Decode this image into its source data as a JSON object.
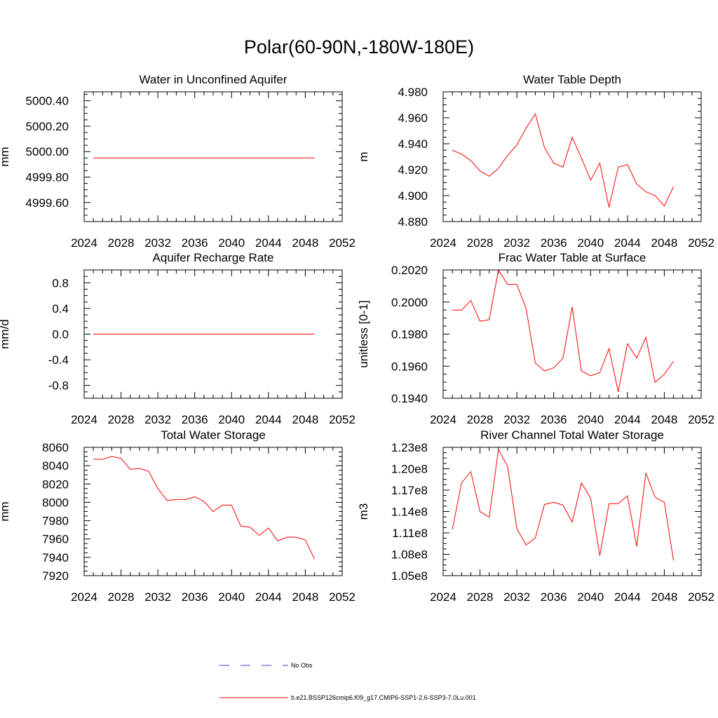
{
  "page": {
    "title": "Polar(60-90N,-180W-180E)"
  },
  "chart_data": [
    {
      "type": "line",
      "title": "Water in Unconfined Aquifer",
      "ylabel": "mm",
      "xlim": [
        2024,
        2052
      ],
      "ylim": [
        4999.45,
        5000.47
      ],
      "xticks": [
        2024,
        2028,
        2032,
        2036,
        2040,
        2044,
        2048,
        2052
      ],
      "yticks": [
        4999.6,
        4999.8,
        5000.0,
        5000.2,
        5000.4
      ],
      "ytick_labels": [
        "4999.60",
        "4999.80",
        "5000.00",
        "5000.20",
        "5000.40"
      ],
      "x": [
        2025,
        2026,
        2027,
        2028,
        2029,
        2030,
        2031,
        2032,
        2033,
        2034,
        2035,
        2036,
        2037,
        2038,
        2039,
        2040,
        2041,
        2042,
        2043,
        2044,
        2045,
        2046,
        2047,
        2048,
        2049
      ],
      "series": [
        {
          "color": "#ff0000",
          "values": [
            4999.95,
            4999.95,
            4999.95,
            4999.95,
            4999.95,
            4999.95,
            4999.95,
            4999.95,
            4999.95,
            4999.95,
            4999.95,
            4999.95,
            4999.95,
            4999.95,
            4999.95,
            4999.95,
            4999.95,
            4999.95,
            4999.95,
            4999.95,
            4999.95,
            4999.95,
            4999.95,
            4999.95,
            4999.95
          ]
        }
      ]
    },
    {
      "type": "line",
      "title": "Water Table Depth",
      "ylabel": "m",
      "xlim": [
        2024,
        2052
      ],
      "ylim": [
        4.88,
        4.98
      ],
      "xticks": [
        2024,
        2028,
        2032,
        2036,
        2040,
        2044,
        2048,
        2052
      ],
      "yticks": [
        4.88,
        4.9,
        4.92,
        4.94,
        4.96,
        4.98
      ],
      "ytick_labels": [
        "4.880",
        "4.900",
        "4.920",
        "4.940",
        "4.960",
        "4.980"
      ],
      "x": [
        2025,
        2026,
        2027,
        2028,
        2029,
        2030,
        2031,
        2032,
        2033,
        2034,
        2035,
        2036,
        2037,
        2038,
        2039,
        2040,
        2041,
        2042,
        2043,
        2044,
        2045,
        2046,
        2047,
        2048,
        2049
      ],
      "series": [
        {
          "color": "#ff0000",
          "values": [
            4.935,
            4.932,
            4.927,
            4.919,
            4.915,
            4.921,
            4.931,
            4.939,
            4.952,
            4.963,
            4.937,
            4.925,
            4.922,
            4.945,
            4.929,
            4.912,
            4.925,
            4.891,
            4.922,
            4.924,
            4.909,
            4.903,
            4.9,
            4.892,
            4.907
          ]
        }
      ]
    },
    {
      "type": "line",
      "title": "Aquifer Recharge Rate",
      "ylabel": "mm/d",
      "xlim": [
        2024,
        2052
      ],
      "ylim": [
        -1.0,
        1.0
      ],
      "xticks": [
        2024,
        2028,
        2032,
        2036,
        2040,
        2044,
        2048,
        2052
      ],
      "yticks": [
        -0.8,
        -0.4,
        0.0,
        0.4,
        0.8
      ],
      "ytick_labels": [
        "-0.8",
        "-0.4",
        "0.0",
        "0.4",
        "0.8"
      ],
      "x": [
        2025,
        2026,
        2027,
        2028,
        2029,
        2030,
        2031,
        2032,
        2033,
        2034,
        2035,
        2036,
        2037,
        2038,
        2039,
        2040,
        2041,
        2042,
        2043,
        2044,
        2045,
        2046,
        2047,
        2048,
        2049
      ],
      "series": [
        {
          "color": "#ff0000",
          "values": [
            0,
            0,
            0,
            0,
            0,
            0,
            0,
            0,
            0,
            0,
            0,
            0,
            0,
            0,
            0,
            0,
            0,
            0,
            0,
            0,
            0,
            0,
            0,
            0,
            0
          ]
        }
      ]
    },
    {
      "type": "line",
      "title": "Frac Water Table at Surface",
      "ylabel": "unitless [0-1]",
      "xlim": [
        2024,
        2052
      ],
      "ylim": [
        0.194,
        0.202
      ],
      "xticks": [
        2024,
        2028,
        2032,
        2036,
        2040,
        2044,
        2048,
        2052
      ],
      "yticks": [
        0.194,
        0.196,
        0.198,
        0.2,
        0.202
      ],
      "ytick_labels": [
        "0.1940",
        "0.1960",
        "0.1980",
        "0.2000",
        "0.2020"
      ],
      "x": [
        2025,
        2026,
        2027,
        2028,
        2029,
        2030,
        2031,
        2032,
        2033,
        2034,
        2035,
        2036,
        2037,
        2038,
        2039,
        2040,
        2041,
        2042,
        2043,
        2044,
        2045,
        2046,
        2047,
        2048,
        2049
      ],
      "series": [
        {
          "color": "#ff0000",
          "values": [
            0.1995,
            0.1995,
            0.2001,
            0.1988,
            0.1989,
            0.202,
            0.2011,
            0.2011,
            0.1996,
            0.1962,
            0.1957,
            0.1959,
            0.1965,
            0.1997,
            0.1957,
            0.1954,
            0.1956,
            0.1971,
            0.1944,
            0.1974,
            0.1965,
            0.1978,
            0.195,
            0.1955,
            0.1963
          ]
        }
      ]
    },
    {
      "type": "line",
      "title": "Total Water Storage",
      "ylabel": "mm",
      "xlim": [
        2024,
        2052
      ],
      "ylim": [
        7920,
        8060
      ],
      "xticks": [
        2024,
        2028,
        2032,
        2036,
        2040,
        2044,
        2048,
        2052
      ],
      "yticks": [
        7920,
        7940,
        7960,
        7980,
        8000,
        8020,
        8040,
        8060
      ],
      "ytick_labels": [
        "7920",
        "7940",
        "7960",
        "7980",
        "8000",
        "8020",
        "8040",
        "8060"
      ],
      "x": [
        2025,
        2026,
        2027,
        2028,
        2029,
        2030,
        2031,
        2032,
        2033,
        2034,
        2035,
        2036,
        2037,
        2038,
        2039,
        2040,
        2041,
        2042,
        2043,
        2044,
        2045,
        2046,
        2047,
        2048,
        2049
      ],
      "series": [
        {
          "color": "#ff0000",
          "values": [
            8047,
            8047,
            8050,
            8048,
            8036,
            8037,
            8034,
            8015,
            8002,
            8003,
            8003,
            8006,
            8001,
            7990,
            7997,
            7997,
            7974,
            7973,
            7964,
            7972,
            7958,
            7962,
            7962,
            7959,
            7938
          ]
        }
      ]
    },
    {
      "type": "line",
      "title": "River Channel Total Water Storage",
      "ylabel": "m3",
      "xlim": [
        2024,
        2052
      ],
      "ylim": [
        105000000,
        123000000
      ],
      "xticks": [
        2024,
        2028,
        2032,
        2036,
        2040,
        2044,
        2048,
        2052
      ],
      "yticks": [
        105000000,
        108000000,
        111000000,
        114000000,
        117000000,
        120000000,
        123000000
      ],
      "ytick_labels": [
        "1.05e8",
        "1.08e8",
        "1.11e8",
        "1.14e8",
        "1.17e8",
        "1.20e8",
        "1.23e8"
      ],
      "x": [
        2025,
        2026,
        2027,
        2028,
        2029,
        2030,
        2031,
        2032,
        2033,
        2034,
        2035,
        2036,
        2037,
        2038,
        2039,
        2040,
        2041,
        2042,
        2043,
        2044,
        2045,
        2046,
        2047,
        2048,
        2049
      ],
      "series": [
        {
          "color": "#ff0000",
          "values": [
            111500000,
            118000000,
            119600000,
            114000000,
            113200000,
            122700000,
            120300000,
            111600000,
            109300000,
            110300000,
            115000000,
            115300000,
            114900000,
            112500000,
            118000000,
            115900000,
            107800000,
            115100000,
            115100000,
            116200000,
            109100000,
            119400000,
            116000000,
            115300000,
            107100000
          ]
        }
      ]
    }
  ],
  "legend": {
    "items": [
      {
        "label": "No Obs",
        "color": "#3b3bcc",
        "style": "dashed"
      },
      {
        "label": "b.e21.BSSP126cmip6.f09_g17.CMIP6-SSP1-2.6-SSP3-7.0Lu.001",
        "color": "#ff0000",
        "style": "solid"
      }
    ]
  }
}
